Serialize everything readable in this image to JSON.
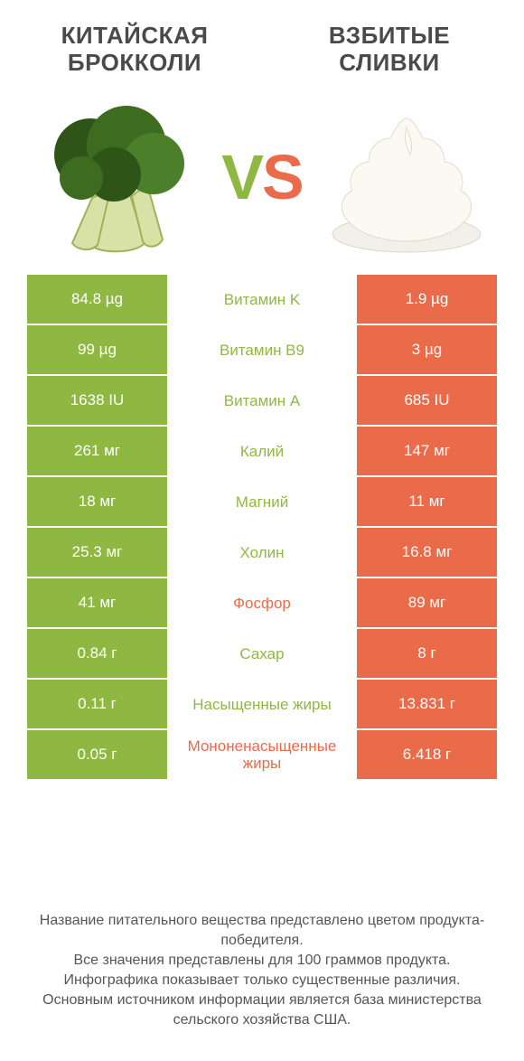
{
  "product_left": {
    "title": "КИТАЙСКАЯ БРОККОЛИ",
    "color": "#8fb843"
  },
  "product_right": {
    "title": "ВЗБИТЫЕ СЛИВКИ",
    "color": "#e96b4a"
  },
  "vs": {
    "v": "V",
    "s": "S"
  },
  "colors": {
    "left_bg": "#8fb843",
    "right_bg": "#e96b4a",
    "cell_text": "#ffffff",
    "mid_bg": "#ffffff"
  },
  "rows": [
    {
      "left": "84.8 µg",
      "mid": "Витамин K",
      "right": "1.9 µg",
      "winner": "left"
    },
    {
      "left": "99 µg",
      "mid": "Витамин B9",
      "right": "3 µg",
      "winner": "left"
    },
    {
      "left": "1638 IU",
      "mid": "Витамин A",
      "right": "685 IU",
      "winner": "left"
    },
    {
      "left": "261 мг",
      "mid": "Калий",
      "right": "147 мг",
      "winner": "left"
    },
    {
      "left": "18 мг",
      "mid": "Магний",
      "right": "11 мг",
      "winner": "left"
    },
    {
      "left": "25.3 мг",
      "mid": "Холин",
      "right": "16.8 мг",
      "winner": "left"
    },
    {
      "left": "41 мг",
      "mid": "Фосфор",
      "right": "89 мг",
      "winner": "right"
    },
    {
      "left": "0.84 г",
      "mid": "Сахар",
      "right": "8 г",
      "winner": "left"
    },
    {
      "left": "0.11 г",
      "mid": "Насыщенные жиры",
      "right": "13.831 г",
      "winner": "left"
    },
    {
      "left": "0.05 г",
      "mid": "Мононенасыщенные жиры",
      "right": "6.418 г",
      "winner": "right"
    }
  ],
  "footer": {
    "l1": "Название питательного вещества представлено цветом продукта-победителя.",
    "l2": "Все значения представлены для 100 граммов продукта.",
    "l3": "Инфографика показывает только существенные различия.",
    "l4": "Основным источником информации является база министерства сельского хозяйства США."
  }
}
